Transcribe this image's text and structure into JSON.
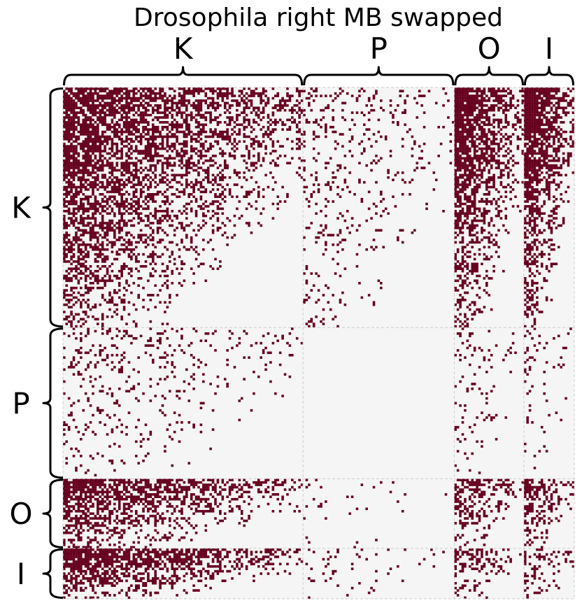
{
  "chart_data": {
    "type": "heatmap",
    "title": "Drosophila right MB swapped",
    "xlabel": "",
    "ylabel": "",
    "n_nodes": 213,
    "colors": {
      "edge": "#67001f",
      "background": "#f5f5f5",
      "divider": "#cccccc",
      "brace": "#000000"
    },
    "grid": false,
    "legend": "none",
    "groups": [
      {
        "label": "K",
        "count": 100
      },
      {
        "label": "P",
        "count": 63
      },
      {
        "label": "O",
        "count": 29
      },
      {
        "label": "I",
        "count": 21
      }
    ],
    "block_density": {
      "rows_are_source_group": true,
      "columns": [
        "K",
        "P",
        "O",
        "I"
      ],
      "K": [
        0.6,
        0.12,
        0.7,
        0.7
      ],
      "P": [
        0.12,
        0.0,
        0.07,
        0.07
      ],
      "O": [
        0.55,
        0.03,
        0.4,
        0.45
      ],
      "I": [
        0.65,
        0.05,
        0.35,
        0.3
      ]
    }
  }
}
